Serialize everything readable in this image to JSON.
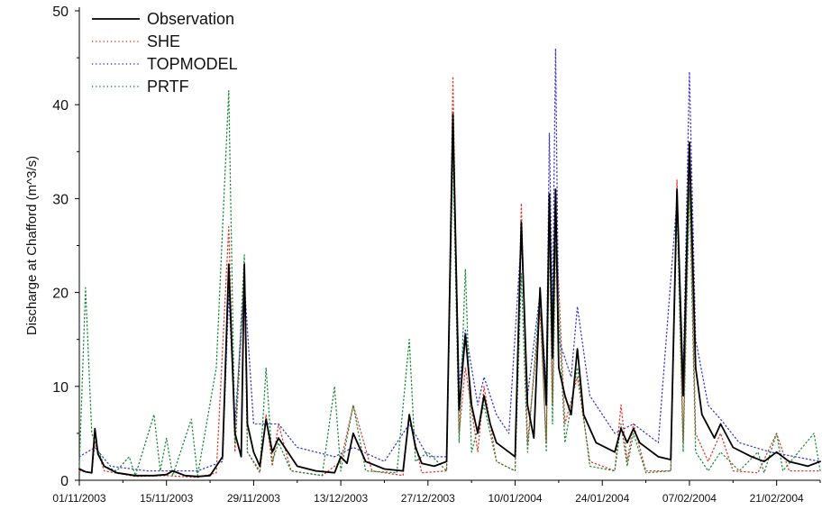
{
  "chart_data": {
    "type": "line",
    "ylabel": "Discharge at Chafford (m^3/s)",
    "ylim": [
      0,
      50
    ],
    "y_ticks": [
      0,
      10,
      20,
      30,
      40,
      50
    ],
    "x_ticks": [
      "01/11/2003",
      "15/11/2003",
      "29/11/2003",
      "13/12/2003",
      "27/12/2003",
      "10/01/2004",
      "24/01/2004",
      "07/02/2004",
      "21/02/2004"
    ],
    "xlim": [
      "2003-11-01",
      "2004-02-28"
    ],
    "legend_position": "top-left",
    "grid": false,
    "series": [
      {
        "name": "Observation",
        "color": "#000000",
        "style": "solid",
        "points": [
          [
            "2003-11-01",
            1.2
          ],
          [
            "2003-11-02",
            0.9
          ],
          [
            "2003-11-03",
            0.8
          ],
          [
            "2003-11-03.5",
            5.5
          ],
          [
            "2003-11-04",
            2.8
          ],
          [
            "2003-11-05",
            1.5
          ],
          [
            "2003-11-07",
            0.8
          ],
          [
            "2003-11-10",
            0.5
          ],
          [
            "2003-11-13",
            0.5
          ],
          [
            "2003-11-15",
            0.6
          ],
          [
            "2003-11-16",
            1.0
          ],
          [
            "2003-11-18",
            0.5
          ],
          [
            "2003-11-20",
            0.4
          ],
          [
            "2003-11-22",
            0.5
          ],
          [
            "2003-11-23",
            1.5
          ],
          [
            "2003-11-24",
            2.5
          ],
          [
            "2003-11-25",
            23.0
          ],
          [
            "2003-11-26",
            5.0
          ],
          [
            "2003-11-27",
            2.5
          ],
          [
            "2003-11-27.5",
            23.0
          ],
          [
            "2003-11-28",
            6.0
          ],
          [
            "2003-11-29",
            3.0
          ],
          [
            "2003-11-30",
            1.5
          ],
          [
            "2003-12-01",
            6.5
          ],
          [
            "2003-12-02",
            3.0
          ],
          [
            "2003-12-03",
            4.5
          ],
          [
            "2003-12-04",
            3.5
          ],
          [
            "2003-12-06",
            1.5
          ],
          [
            "2003-12-09",
            1.0
          ],
          [
            "2003-12-12",
            0.8
          ],
          [
            "2003-12-13",
            2.5
          ],
          [
            "2003-12-14",
            1.8
          ],
          [
            "2003-12-15",
            5.0
          ],
          [
            "2003-12-17",
            2.0
          ],
          [
            "2003-12-20",
            1.2
          ],
          [
            "2003-12-23",
            1.0
          ],
          [
            "2003-12-24",
            7.0
          ],
          [
            "2003-12-25",
            3.5
          ],
          [
            "2003-12-26",
            1.8
          ],
          [
            "2003-12-28",
            1.5
          ],
          [
            "2003-12-30",
            2.0
          ],
          [
            "2003-12-31",
            39.0
          ],
          [
            "2004-01-01",
            7.5
          ],
          [
            "2004-01-02",
            15.5
          ],
          [
            "2004-01-03",
            8.0
          ],
          [
            "2004-01-04",
            5.0
          ],
          [
            "2004-01-05",
            9.0
          ],
          [
            "2004-01-06",
            6.0
          ],
          [
            "2004-01-07",
            4.0
          ],
          [
            "2004-01-09",
            3.0
          ],
          [
            "2004-01-10",
            2.5
          ],
          [
            "2004-01-11",
            27.5
          ],
          [
            "2004-01-12",
            8.0
          ],
          [
            "2004-01-13",
            4.5
          ],
          [
            "2004-01-14",
            20.5
          ],
          [
            "2004-01-15",
            8.0
          ],
          [
            "2004-01-15.5",
            30.5
          ],
          [
            "2004-01-16",
            13.0
          ],
          [
            "2004-01-16.5",
            31.0
          ],
          [
            "2004-01-17",
            12.0
          ],
          [
            "2004-01-18",
            9.0
          ],
          [
            "2004-01-19",
            7.0
          ],
          [
            "2004-01-20",
            14.0
          ],
          [
            "2004-01-21",
            7.0
          ],
          [
            "2004-01-23",
            4.0
          ],
          [
            "2004-01-26",
            3.0
          ],
          [
            "2004-01-27",
            5.5
          ],
          [
            "2004-01-28",
            4.0
          ],
          [
            "2004-01-29",
            5.5
          ],
          [
            "2004-01-30",
            4.0
          ],
          [
            "2004-02-02",
            2.5
          ],
          [
            "2004-02-04",
            2.2
          ],
          [
            "2004-02-05",
            31.0
          ],
          [
            "2004-02-06",
            9.0
          ],
          [
            "2004-02-07",
            36.0
          ],
          [
            "2004-02-08",
            12.0
          ],
          [
            "2004-02-09",
            7.0
          ],
          [
            "2004-02-11",
            4.5
          ],
          [
            "2004-02-12",
            6.0
          ],
          [
            "2004-02-14",
            3.5
          ],
          [
            "2004-02-17",
            2.5
          ],
          [
            "2004-02-19",
            2.0
          ],
          [
            "2004-02-21",
            3.0
          ],
          [
            "2004-02-23",
            2.0
          ],
          [
            "2004-02-26",
            1.5
          ],
          [
            "2004-02-28",
            2.0
          ]
        ]
      },
      {
        "name": "SHE",
        "color": "#e03a2a",
        "style": "dotted",
        "points": [
          [
            "2003-11-01",
            1.0
          ],
          [
            "2003-11-03",
            0.8
          ],
          [
            "2003-11-03.5",
            4.0
          ],
          [
            "2003-11-05",
            1.0
          ],
          [
            "2003-11-10",
            0.4
          ],
          [
            "2003-11-15",
            0.5
          ],
          [
            "2003-11-20",
            0.3
          ],
          [
            "2003-11-23",
            0.8
          ],
          [
            "2003-11-25",
            27.0
          ],
          [
            "2003-11-26",
            3.0
          ],
          [
            "2003-11-27.5",
            22.0
          ],
          [
            "2003-11-28",
            3.0
          ],
          [
            "2003-11-30",
            0.8
          ],
          [
            "2003-12-01",
            7.0
          ],
          [
            "2003-12-02",
            1.5
          ],
          [
            "2003-12-03",
            6.0
          ],
          [
            "2003-12-05",
            1.0
          ],
          [
            "2003-12-10",
            0.5
          ],
          [
            "2003-12-13",
            2.0
          ],
          [
            "2003-12-15",
            8.0
          ],
          [
            "2003-12-18",
            1.0
          ],
          [
            "2003-12-23",
            0.5
          ],
          [
            "2003-12-24",
            7.0
          ],
          [
            "2003-12-26",
            0.8
          ],
          [
            "2003-12-30",
            1.0
          ],
          [
            "2003-12-31",
            43.0
          ],
          [
            "2004-01-01",
            5.0
          ],
          [
            "2004-01-02",
            12.0
          ],
          [
            "2004-01-04",
            3.0
          ],
          [
            "2004-01-05",
            10.0
          ],
          [
            "2004-01-07",
            2.0
          ],
          [
            "2004-01-10",
            1.0
          ],
          [
            "2004-01-11",
            29.5
          ],
          [
            "2004-01-12",
            4.0
          ],
          [
            "2004-01-14",
            18.0
          ],
          [
            "2004-01-15",
            4.0
          ],
          [
            "2004-01-15.5",
            29.0
          ],
          [
            "2004-01-16",
            8.0
          ],
          [
            "2004-01-16.5",
            28.0
          ],
          [
            "2004-01-18",
            6.0
          ],
          [
            "2004-01-20",
            11.0
          ],
          [
            "2004-01-22",
            2.0
          ],
          [
            "2004-01-26",
            1.0
          ],
          [
            "2004-01-27",
            8.0
          ],
          [
            "2004-01-28",
            2.0
          ],
          [
            "2004-01-29",
            6.0
          ],
          [
            "2004-01-31",
            1.0
          ],
          [
            "2004-02-04",
            1.0
          ],
          [
            "2004-02-05",
            32.0
          ],
          [
            "2004-02-06",
            4.0
          ],
          [
            "2004-02-07",
            34.0
          ],
          [
            "2004-02-08",
            5.0
          ],
          [
            "2004-02-10",
            2.0
          ],
          [
            "2004-02-12",
            5.0
          ],
          [
            "2004-02-14",
            1.0
          ],
          [
            "2004-02-18",
            0.8
          ],
          [
            "2004-02-21",
            5.0
          ],
          [
            "2004-02-23",
            1.0
          ],
          [
            "2004-02-28",
            1.0
          ]
        ]
      },
      {
        "name": "TOPMODEL",
        "color": "#3a3ad0",
        "style": "dotted",
        "points": [
          [
            "2003-11-01",
            2.5
          ],
          [
            "2003-11-03.5",
            3.5
          ],
          [
            "2003-11-06",
            1.5
          ],
          [
            "2003-11-12",
            1.0
          ],
          [
            "2003-11-20",
            1.0
          ],
          [
            "2003-11-24",
            2.0
          ],
          [
            "2003-11-25",
            20.0
          ],
          [
            "2003-11-26",
            6.0
          ],
          [
            "2003-11-27.5",
            21.0
          ],
          [
            "2003-11-29",
            6.0
          ],
          [
            "2003-12-01",
            6.0
          ],
          [
            "2003-12-03",
            6.0
          ],
          [
            "2003-12-06",
            3.5
          ],
          [
            "2003-12-12",
            2.5
          ],
          [
            "2003-12-15",
            3.5
          ],
          [
            "2003-12-20",
            2.0
          ],
          [
            "2003-12-24",
            6.0
          ],
          [
            "2003-12-27",
            2.5
          ],
          [
            "2003-12-30",
            2.5
          ],
          [
            "2003-12-31",
            38.0
          ],
          [
            "2004-01-01",
            10.0
          ],
          [
            "2004-01-02",
            16.0
          ],
          [
            "2004-01-04",
            8.0
          ],
          [
            "2004-01-05",
            11.0
          ],
          [
            "2004-01-07",
            7.0
          ],
          [
            "2004-01-09",
            5.0
          ],
          [
            "2004-01-11",
            26.0
          ],
          [
            "2004-01-12",
            9.0
          ],
          [
            "2004-01-14",
            20.0
          ],
          [
            "2004-01-15",
            10.0
          ],
          [
            "2004-01-15.5",
            37.0
          ],
          [
            "2004-01-16",
            18.0
          ],
          [
            "2004-01-16.5",
            46.0
          ],
          [
            "2004-01-17",
            15.0
          ],
          [
            "2004-01-19",
            11.0
          ],
          [
            "2004-01-20",
            18.5
          ],
          [
            "2004-01-22",
            9.0
          ],
          [
            "2004-01-26",
            5.0
          ],
          [
            "2004-01-29",
            6.0
          ],
          [
            "2004-02-02",
            4.0
          ],
          [
            "2004-02-05",
            30.0
          ],
          [
            "2004-02-06",
            11.0
          ],
          [
            "2004-02-07",
            43.5
          ],
          [
            "2004-02-08",
            15.0
          ],
          [
            "2004-02-10",
            8.0
          ],
          [
            "2004-02-12",
            6.5
          ],
          [
            "2004-02-15",
            4.0
          ],
          [
            "2004-02-20",
            3.0
          ],
          [
            "2004-02-24",
            2.5
          ],
          [
            "2004-02-28",
            2.0
          ]
        ]
      },
      {
        "name": "PRTF",
        "color": "#1f8a3a",
        "style": "dotted",
        "points": [
          [
            "2003-11-01",
            1.5
          ],
          [
            "2003-11-02",
            20.5
          ],
          [
            "2003-11-03",
            5.0
          ],
          [
            "2003-11-05",
            1.5
          ],
          [
            "2003-11-07",
            1.0
          ],
          [
            "2003-11-09",
            2.5
          ],
          [
            "2003-11-10",
            0.5
          ],
          [
            "2003-11-13",
            7.0
          ],
          [
            "2003-11-14",
            1.0
          ],
          [
            "2003-11-15",
            4.5
          ],
          [
            "2003-11-16",
            0.5
          ],
          [
            "2003-11-19",
            6.5
          ],
          [
            "2003-11-20",
            0.5
          ],
          [
            "2003-11-23",
            12.0
          ],
          [
            "2003-11-25",
            41.5
          ],
          [
            "2003-11-26",
            4.0
          ],
          [
            "2003-11-27.5",
            24.0
          ],
          [
            "2003-11-28",
            3.0
          ],
          [
            "2003-11-30",
            1.0
          ],
          [
            "2003-12-01",
            12.0
          ],
          [
            "2003-12-02",
            2.0
          ],
          [
            "2003-12-03",
            4.0
          ],
          [
            "2003-12-05",
            1.0
          ],
          [
            "2003-12-10",
            0.5
          ],
          [
            "2003-12-12",
            10.0
          ],
          [
            "2003-12-13",
            1.0
          ],
          [
            "2003-12-15",
            8.0
          ],
          [
            "2003-12-17",
            1.0
          ],
          [
            "2003-12-22",
            0.8
          ],
          [
            "2003-12-24",
            15.0
          ],
          [
            "2003-12-25",
            2.0
          ],
          [
            "2003-12-27",
            3.0
          ],
          [
            "2003-12-30",
            1.0
          ],
          [
            "2003-12-31",
            35.0
          ],
          [
            "2004-01-01",
            4.0
          ],
          [
            "2004-01-02",
            22.5
          ],
          [
            "2004-01-03",
            3.0
          ],
          [
            "2004-01-05",
            8.0
          ],
          [
            "2004-01-07",
            2.0
          ],
          [
            "2004-01-10",
            1.0
          ],
          [
            "2004-01-11",
            22.0
          ],
          [
            "2004-01-12",
            3.0
          ],
          [
            "2004-01-14",
            20.0
          ],
          [
            "2004-01-15",
            3.0
          ],
          [
            "2004-01-15.5",
            27.0
          ],
          [
            "2004-01-16",
            6.0
          ],
          [
            "2004-01-16.5",
            25.0
          ],
          [
            "2004-01-18",
            4.0
          ],
          [
            "2004-01-20",
            12.0
          ],
          [
            "2004-01-22",
            1.5
          ],
          [
            "2004-01-26",
            1.0
          ],
          [
            "2004-01-27",
            6.0
          ],
          [
            "2004-01-28",
            1.5
          ],
          [
            "2004-01-29",
            5.0
          ],
          [
            "2004-01-31",
            0.8
          ],
          [
            "2004-02-04",
            1.0
          ],
          [
            "2004-02-05",
            29.0
          ],
          [
            "2004-02-06",
            3.0
          ],
          [
            "2004-02-07",
            31.0
          ],
          [
            "2004-02-08",
            3.0
          ],
          [
            "2004-02-10",
            1.0
          ],
          [
            "2004-02-12",
            3.0
          ],
          [
            "2004-02-15",
            1.0
          ],
          [
            "2004-02-18",
            3.0
          ],
          [
            "2004-02-19",
            0.8
          ],
          [
            "2004-02-21",
            5.0
          ],
          [
            "2004-02-22",
            1.0
          ],
          [
            "2004-02-27",
            5.0
          ],
          [
            "2004-02-28",
            1.0
          ]
        ]
      }
    ]
  }
}
